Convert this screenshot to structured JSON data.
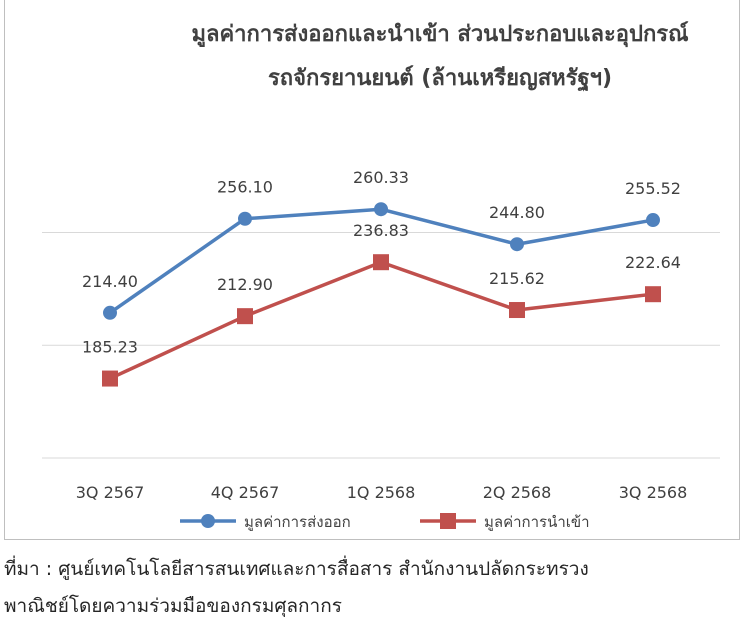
{
  "chart_data": {
    "type": "line",
    "title_line1": "มูลค่าการส่งออกและนำเข้า ส่วนประกอบและอุปกรณ์",
    "title_line2": "รถจักรยานยนต์ (ล้านเหรียญสหรัฐฯ)",
    "categories": [
      "3Q 2567",
      "4Q 2567",
      "1Q 2568",
      "2Q 2568",
      "3Q 2568"
    ],
    "series": [
      {
        "name": "มูลค่าการส่งออก",
        "values": [
          214.4,
          256.1,
          260.33,
          244.8,
          255.52
        ],
        "labels": [
          "214.40",
          "256.10",
          "260.33",
          "244.80",
          "255.52"
        ],
        "color": "#4f81bd",
        "marker": "circle"
      },
      {
        "name": "มูลค่าการนำเข้า",
        "values": [
          185.23,
          212.9,
          236.83,
          215.62,
          222.64
        ],
        "labels": [
          "185.23",
          "212.90",
          "236.83",
          "215.62",
          "222.64"
        ],
        "color": "#c0504d",
        "marker": "square"
      }
    ],
    "gridlines": [
      150,
      200,
      250
    ],
    "legend_position": "bottom",
    "grid": true
  },
  "source": {
    "line1": "ที่มา : ศูนย์เทคโนโลยีสารสนเทศและการสื่อสาร สำนักงานปลัดกระทรวง",
    "line2": "พาณิชย์โดยความร่วมมือของกรมศุลกากร"
  }
}
